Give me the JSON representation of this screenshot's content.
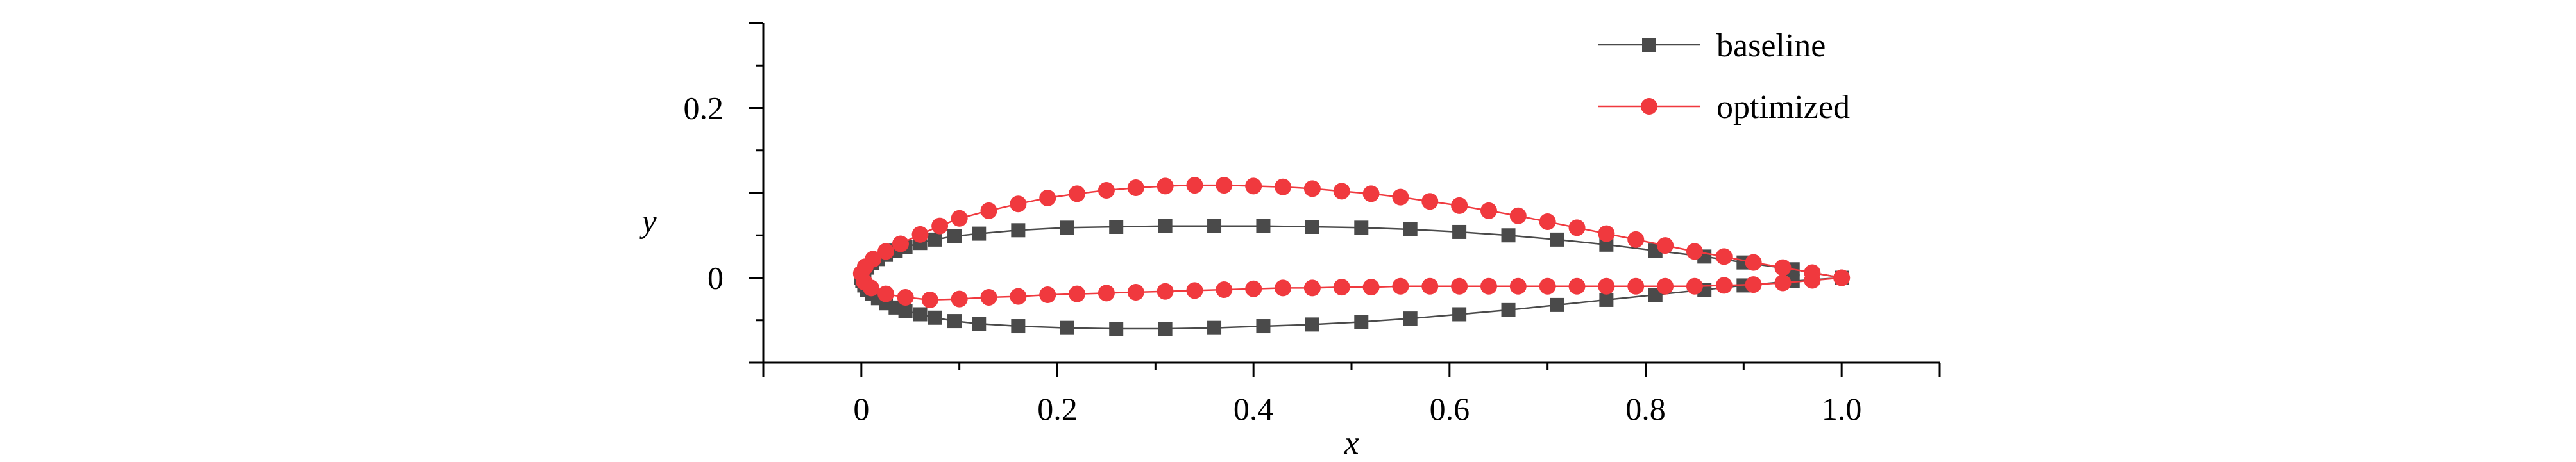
{
  "chart_data": {
    "type": "line",
    "xlabel": "x",
    "ylabel": "y",
    "xlim": [
      -0.1,
      1.1
    ],
    "ylim": [
      -0.1,
      0.3
    ],
    "x_ticks": [
      0,
      0.2,
      0.4,
      0.6,
      0.8,
      1.0
    ],
    "x_tick_labels": [
      "0",
      "0.2",
      "0.4",
      "0.6",
      "0.8",
      "1.0"
    ],
    "y_ticks": [
      0,
      0.2
    ],
    "y_tick_labels": [
      "0",
      "0.2"
    ],
    "legend_position": "top-right",
    "series": [
      {
        "name": "baseline",
        "color": "#4a4a4a",
        "marker": "square",
        "x": [
          1.0,
          0.95,
          0.9,
          0.86,
          0.81,
          0.76,
          0.71,
          0.66,
          0.61,
          0.56,
          0.51,
          0.46,
          0.41,
          0.36,
          0.31,
          0.26,
          0.21,
          0.16,
          0.12,
          0.095,
          0.075,
          0.06,
          0.045,
          0.035,
          0.025,
          0.017,
          0.011,
          0.006,
          0.003,
          0.001,
          0.0,
          0.001,
          0.003,
          0.006,
          0.011,
          0.017,
          0.025,
          0.035,
          0.045,
          0.06,
          0.075,
          0.095,
          0.12,
          0.16,
          0.21,
          0.26,
          0.31,
          0.36,
          0.41,
          0.46,
          0.51,
          0.56,
          0.61,
          0.66,
          0.71,
          0.76,
          0.81,
          0.86,
          0.9,
          0.95,
          1.0
        ],
        "y": [
          0.0,
          0.01,
          0.018,
          0.025,
          0.032,
          0.039,
          0.045,
          0.05,
          0.054,
          0.057,
          0.059,
          0.06,
          0.061,
          0.061,
          0.061,
          0.06,
          0.059,
          0.056,
          0.052,
          0.049,
          0.045,
          0.041,
          0.036,
          0.032,
          0.027,
          0.022,
          0.017,
          0.012,
          0.008,
          0.004,
          0.0,
          -0.004,
          -0.009,
          -0.014,
          -0.019,
          -0.024,
          -0.03,
          -0.035,
          -0.039,
          -0.043,
          -0.047,
          -0.051,
          -0.054,
          -0.057,
          -0.059,
          -0.06,
          -0.06,
          -0.059,
          -0.057,
          -0.055,
          -0.052,
          -0.048,
          -0.043,
          -0.038,
          -0.032,
          -0.026,
          -0.02,
          -0.014,
          -0.009,
          -0.004,
          0.0
        ]
      },
      {
        "name": "optimized",
        "color": "#f0393e",
        "marker": "circle",
        "x": [
          1.0,
          0.97,
          0.94,
          0.91,
          0.88,
          0.85,
          0.82,
          0.79,
          0.76,
          0.73,
          0.7,
          0.67,
          0.64,
          0.61,
          0.58,
          0.55,
          0.52,
          0.49,
          0.46,
          0.43,
          0.4,
          0.37,
          0.34,
          0.31,
          0.28,
          0.25,
          0.22,
          0.19,
          0.16,
          0.13,
          0.1,
          0.08,
          0.06,
          0.04,
          0.025,
          0.012,
          0.004,
          0.0,
          0.003,
          0.01,
          0.025,
          0.045,
          0.07,
          0.1,
          0.13,
          0.16,
          0.19,
          0.22,
          0.25,
          0.28,
          0.31,
          0.34,
          0.37,
          0.4,
          0.43,
          0.46,
          0.49,
          0.52,
          0.55,
          0.58,
          0.61,
          0.64,
          0.67,
          0.7,
          0.73,
          0.76,
          0.79,
          0.82,
          0.85,
          0.88,
          0.91,
          0.94,
          0.97,
          1.0
        ],
        "y": [
          0.0,
          0.006,
          0.012,
          0.018,
          0.025,
          0.031,
          0.038,
          0.045,
          0.052,
          0.059,
          0.066,
          0.073,
          0.079,
          0.085,
          0.09,
          0.095,
          0.099,
          0.102,
          0.105,
          0.107,
          0.108,
          0.109,
          0.109,
          0.108,
          0.106,
          0.103,
          0.099,
          0.094,
          0.087,
          0.079,
          0.07,
          0.061,
          0.051,
          0.04,
          0.031,
          0.022,
          0.013,
          0.005,
          -0.005,
          -0.012,
          -0.019,
          -0.023,
          -0.026,
          -0.025,
          -0.023,
          -0.022,
          -0.02,
          -0.019,
          -0.018,
          -0.017,
          -0.016,
          -0.015,
          -0.014,
          -0.013,
          -0.012,
          -0.012,
          -0.011,
          -0.011,
          -0.01,
          -0.01,
          -0.01,
          -0.01,
          -0.01,
          -0.01,
          -0.01,
          -0.01,
          -0.01,
          -0.01,
          -0.01,
          -0.009,
          -0.008,
          -0.006,
          -0.003,
          0.0
        ]
      }
    ]
  }
}
